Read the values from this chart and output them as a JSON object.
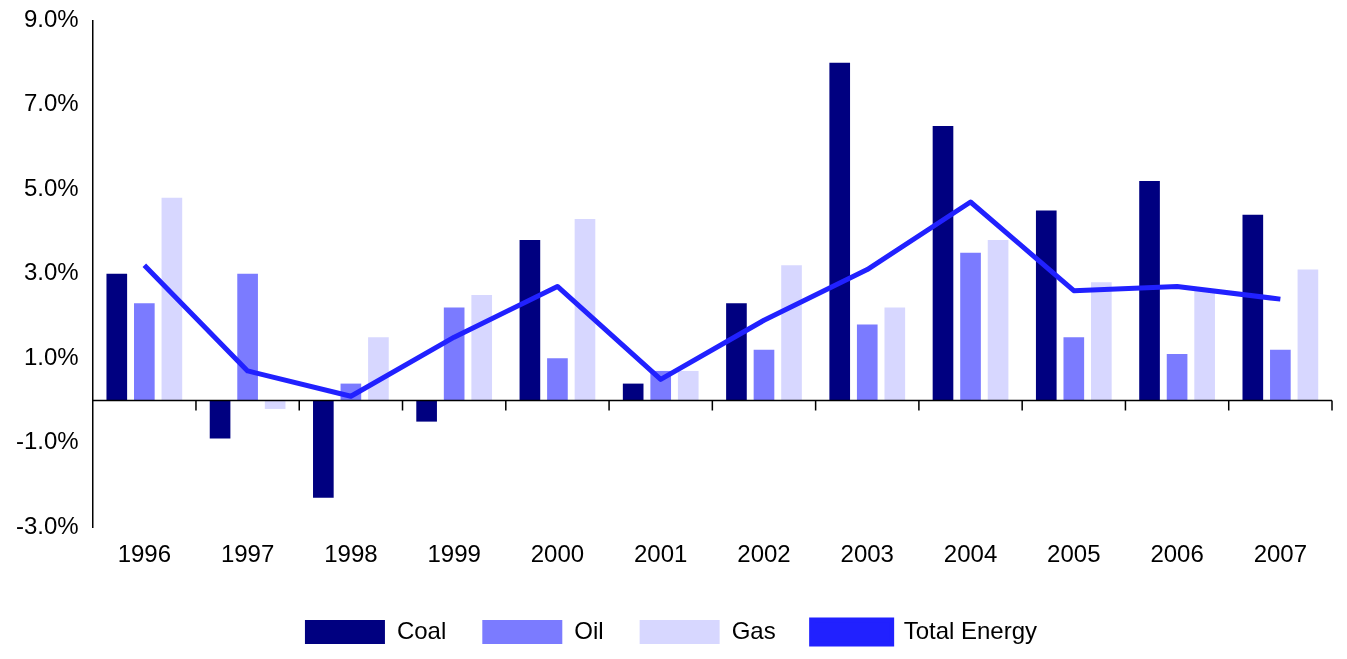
{
  "chart_data": {
    "type": "bar",
    "categories": [
      "1996",
      "1997",
      "1998",
      "1999",
      "2000",
      "2001",
      "2002",
      "2003",
      "2004",
      "2005",
      "2006",
      "2007"
    ],
    "series": [
      {
        "name": "Coal",
        "color": "#000080",
        "values": [
          3.0,
          -0.9,
          -2.3,
          -0.5,
          3.8,
          0.4,
          2.3,
          8.0,
          6.5,
          4.5,
          5.2,
          4.4
        ]
      },
      {
        "name": "Oil",
        "color": "#7b7bff",
        "values": [
          2.3,
          3.0,
          0.4,
          2.2,
          1.0,
          0.7,
          1.2,
          1.8,
          3.5,
          1.5,
          1.1,
          1.2
        ]
      },
      {
        "name": "Gas",
        "color": "#d7d7ff",
        "values": [
          4.8,
          -0.2,
          1.5,
          2.5,
          4.3,
          0.7,
          3.2,
          2.2,
          3.8,
          2.8,
          2.6,
          3.1
        ]
      },
      {
        "name": "Total Energy",
        "type": "line",
        "color": "#2121ff",
        "values": [
          3.2,
          0.7,
          0.1,
          1.5,
          2.7,
          0.5,
          1.9,
          3.1,
          4.7,
          2.6,
          2.7,
          2.4
        ]
      }
    ],
    "ylim": [
      -3.0,
      9.0
    ],
    "yticks": [
      {
        "value": -3,
        "label": "-3.0%"
      },
      {
        "value": -1,
        "label": "-1.0%"
      },
      {
        "value": 1,
        "label": "1.0%"
      },
      {
        "value": 3,
        "label": "3.0%"
      },
      {
        "value": 5,
        "label": "5.0%"
      },
      {
        "value": 7,
        "label": "7.0%"
      },
      {
        "value": 9,
        "label": "9.0%"
      }
    ],
    "grid": false,
    "legend": "bottom",
    "marker": "none",
    "line_style": "solid"
  }
}
